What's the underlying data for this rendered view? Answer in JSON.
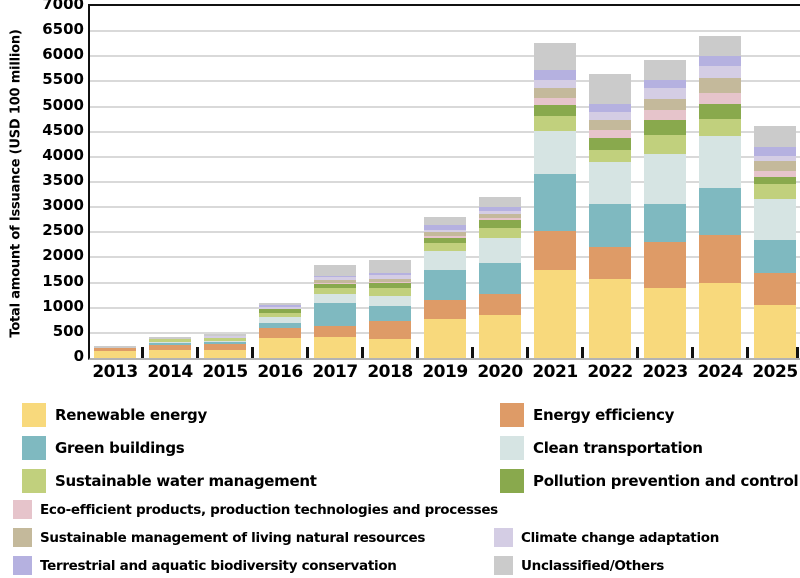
{
  "chart_data": {
    "type": "bar",
    "stacked": true,
    "title": "",
    "xlabel": "",
    "ylabel": "Total amount of Issuance (USD 100 million)",
    "ylim": [
      0,
      7000
    ],
    "ytick_step": 500,
    "grid": true,
    "legend_position": "bottom",
    "categories": [
      "2013",
      "2014",
      "2015",
      "2016",
      "2017",
      "2018",
      "2019",
      "2020",
      "2021",
      "2022",
      "2023",
      "2024",
      "2025"
    ],
    "series": [
      {
        "name": "Renewable energy",
        "color": "#F8D97C",
        "values": [
          130,
          150,
          160,
          400,
          420,
          380,
          780,
          860,
          1760,
          1565,
          1400,
          1500,
          1050
        ]
      },
      {
        "name": "Energy efficiency",
        "color": "#DE9B67",
        "values": [
          60,
          110,
          110,
          200,
          220,
          360,
          370,
          410,
          765,
          645,
          905,
          945,
          650
        ]
      },
      {
        "name": "Green buildings",
        "color": "#7FB9C0",
        "values": [
          0,
          30,
          40,
          100,
          460,
          300,
          605,
          625,
          1135,
          860,
          750,
          930,
          650
        ]
      },
      {
        "name": "Clean transportation",
        "color": "#D6E4E3",
        "values": [
          0,
          20,
          20,
          120,
          180,
          200,
          370,
          485,
          855,
          820,
          1000,
          1050,
          815
        ]
      },
      {
        "name": "Sustainable water management",
        "color": "#C1D07D",
        "values": [
          0,
          70,
          70,
          80,
          110,
          160,
          155,
          210,
          290,
          255,
          380,
          325,
          290
        ]
      },
      {
        "name": "Pollution prevention and control",
        "color": "#89A94D",
        "values": [
          0,
          0,
          0,
          70,
          80,
          90,
          100,
          145,
          230,
          235,
          305,
          305,
          145
        ]
      },
      {
        "name": "Eco-efficient products, production technologies and processes",
        "color": "#E6C4CB",
        "values": [
          0,
          0,
          0,
          0,
          30,
          30,
          50,
          40,
          130,
          155,
          200,
          215,
          115
        ]
      },
      {
        "name": "Sustainable management of living natural resources",
        "color": "#C4B99B",
        "values": [
          0,
          0,
          0,
          0,
          50,
          60,
          70,
          90,
          195,
          195,
          220,
          295,
          195
        ]
      },
      {
        "name": "Climate change adaptation",
        "color": "#D4CDE4",
        "values": [
          0,
          0,
          40,
          40,
          60,
          80,
          40,
          50,
          160,
          155,
          215,
          240,
          110
        ]
      },
      {
        "name": "Terrestrial and aquatic biodiversity conservation",
        "color": "#B5B1E0",
        "values": [
          0,
          0,
          0,
          40,
          30,
          40,
          100,
          80,
          210,
          175,
          145,
          195,
          180
        ]
      },
      {
        "name": "Unclassified/Others",
        "color": "#CBCBCB",
        "values": [
          40,
          30,
          40,
          50,
          210,
          250,
          165,
          215,
          530,
          590,
          410,
          410,
          405
        ]
      }
    ]
  },
  "legend": {
    "rows": [
      {
        "items": [
          "Renewable energy",
          "Energy efficiency"
        ]
      },
      {
        "items": [
          "Green buildings",
          "Clean transportation"
        ]
      },
      {
        "items": [
          "Sustainable water management",
          "Pollution prevention and control"
        ]
      },
      {
        "items": [
          "Eco-efficient products, production technologies and processes"
        ]
      },
      {
        "items": [
          "Sustainable management of living natural resources",
          "Climate change adaptation"
        ]
      },
      {
        "items": [
          "Terrestrial and aquatic biodiversity conservation",
          "Unclassified/Others"
        ]
      }
    ]
  },
  "colors": {
    "gridline": "#d9d9d9",
    "axis": "#111111",
    "baseline": "#b3b3b3"
  }
}
